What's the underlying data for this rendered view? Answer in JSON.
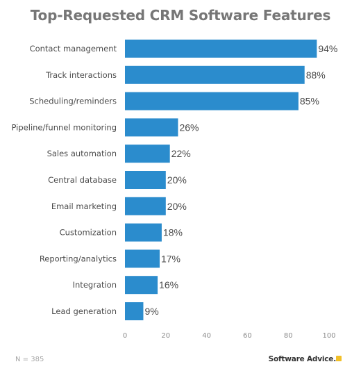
{
  "chart_data": {
    "type": "bar",
    "orientation": "horizontal",
    "title": "Top-Requested CRM Software Features",
    "categories": [
      "Contact management",
      "Track interactions",
      "Scheduling/reminders",
      "Pipeline/funnel monitoring",
      "Sales automation",
      "Central database",
      "Email marketing",
      "Customization",
      "Reporting/analytics",
      "Integration",
      "Lead generation"
    ],
    "values": [
      94,
      88,
      85,
      26,
      22,
      20,
      20,
      18,
      17,
      16,
      9
    ],
    "value_labels": [
      "94%",
      "88%",
      "85%",
      "26%",
      "22%",
      "20%",
      "20%",
      "18%",
      "17%",
      "16%",
      "9%"
    ],
    "xlim": [
      0,
      100
    ],
    "xticks": [
      0,
      20,
      40,
      60,
      80,
      100
    ],
    "grid": false,
    "bar_color": "#2b8ccd"
  },
  "footnote": "N = 385",
  "brand": "Software Advice.",
  "brand_color": "#f2c029"
}
